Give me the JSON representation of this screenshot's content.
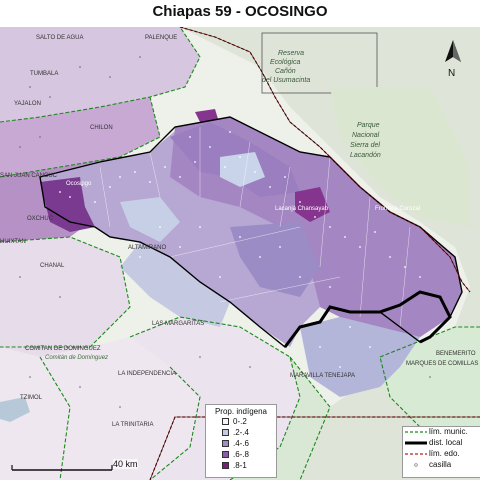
{
  "title": "Chiapas 59 - OCOSINGO",
  "labels": {
    "salto_de_agua": "SALTO DE AGUA",
    "palenque": "PALENQUE",
    "tumbala": "TUMBALA",
    "yajalon": "YAJALON",
    "chilon": "CHILON",
    "san_juan_cancuc": "SAN JUAN CANCUC",
    "oxchuc": "OXCHUC",
    "huixtan": "HUIXTAN",
    "chanal": "CHANAL",
    "altamirano": "ALTAMIRANO",
    "las_margaritas": "LAS MARGARITAS",
    "la_independencia": "LA INDEPENDENCIA",
    "comitan_de_dominguez": "COMITAN DE DOMINGUEZ",
    "comitan_town": "Comitán de Domínguez",
    "la_trinitaria": "LA TRINITARIA",
    "tzimol": "TZIMOL",
    "ocosingo_town": "Ocosingo",
    "lacanja": "Lacanjá Chansayab",
    "frontera_corozal": "Frontera Corozal",
    "benemerito": "BENEMERITO",
    "marques_de_comillas": "MARQUES DE COMILLAS",
    "maravilla_tenejapa": "MARAVILLA TENEJAPA",
    "reserva": "Reserva Ecológica Cañón del Usumacinta",
    "parque": "Parque Nacional Sierra del Lacandón"
  },
  "legend": {
    "title": "Prop. indígena",
    "items": [
      {
        "label": "0-.2",
        "color": "#f7f3fa"
      },
      {
        "label": ".2-.4",
        "color": "#c3cbe3"
      },
      {
        "label": ".4-.6",
        "color": "#a18dc6"
      },
      {
        "label": ".6-.8",
        "color": "#8c5aaf"
      },
      {
        "label": ".8-1",
        "color": "#7a1f7a"
      }
    ]
  },
  "legend_lines": {
    "municipal": "lím. munic.",
    "district": "dist. local",
    "state": "lím. edo.",
    "casilla": "casilla"
  },
  "scale": "40 km",
  "north": "N"
}
